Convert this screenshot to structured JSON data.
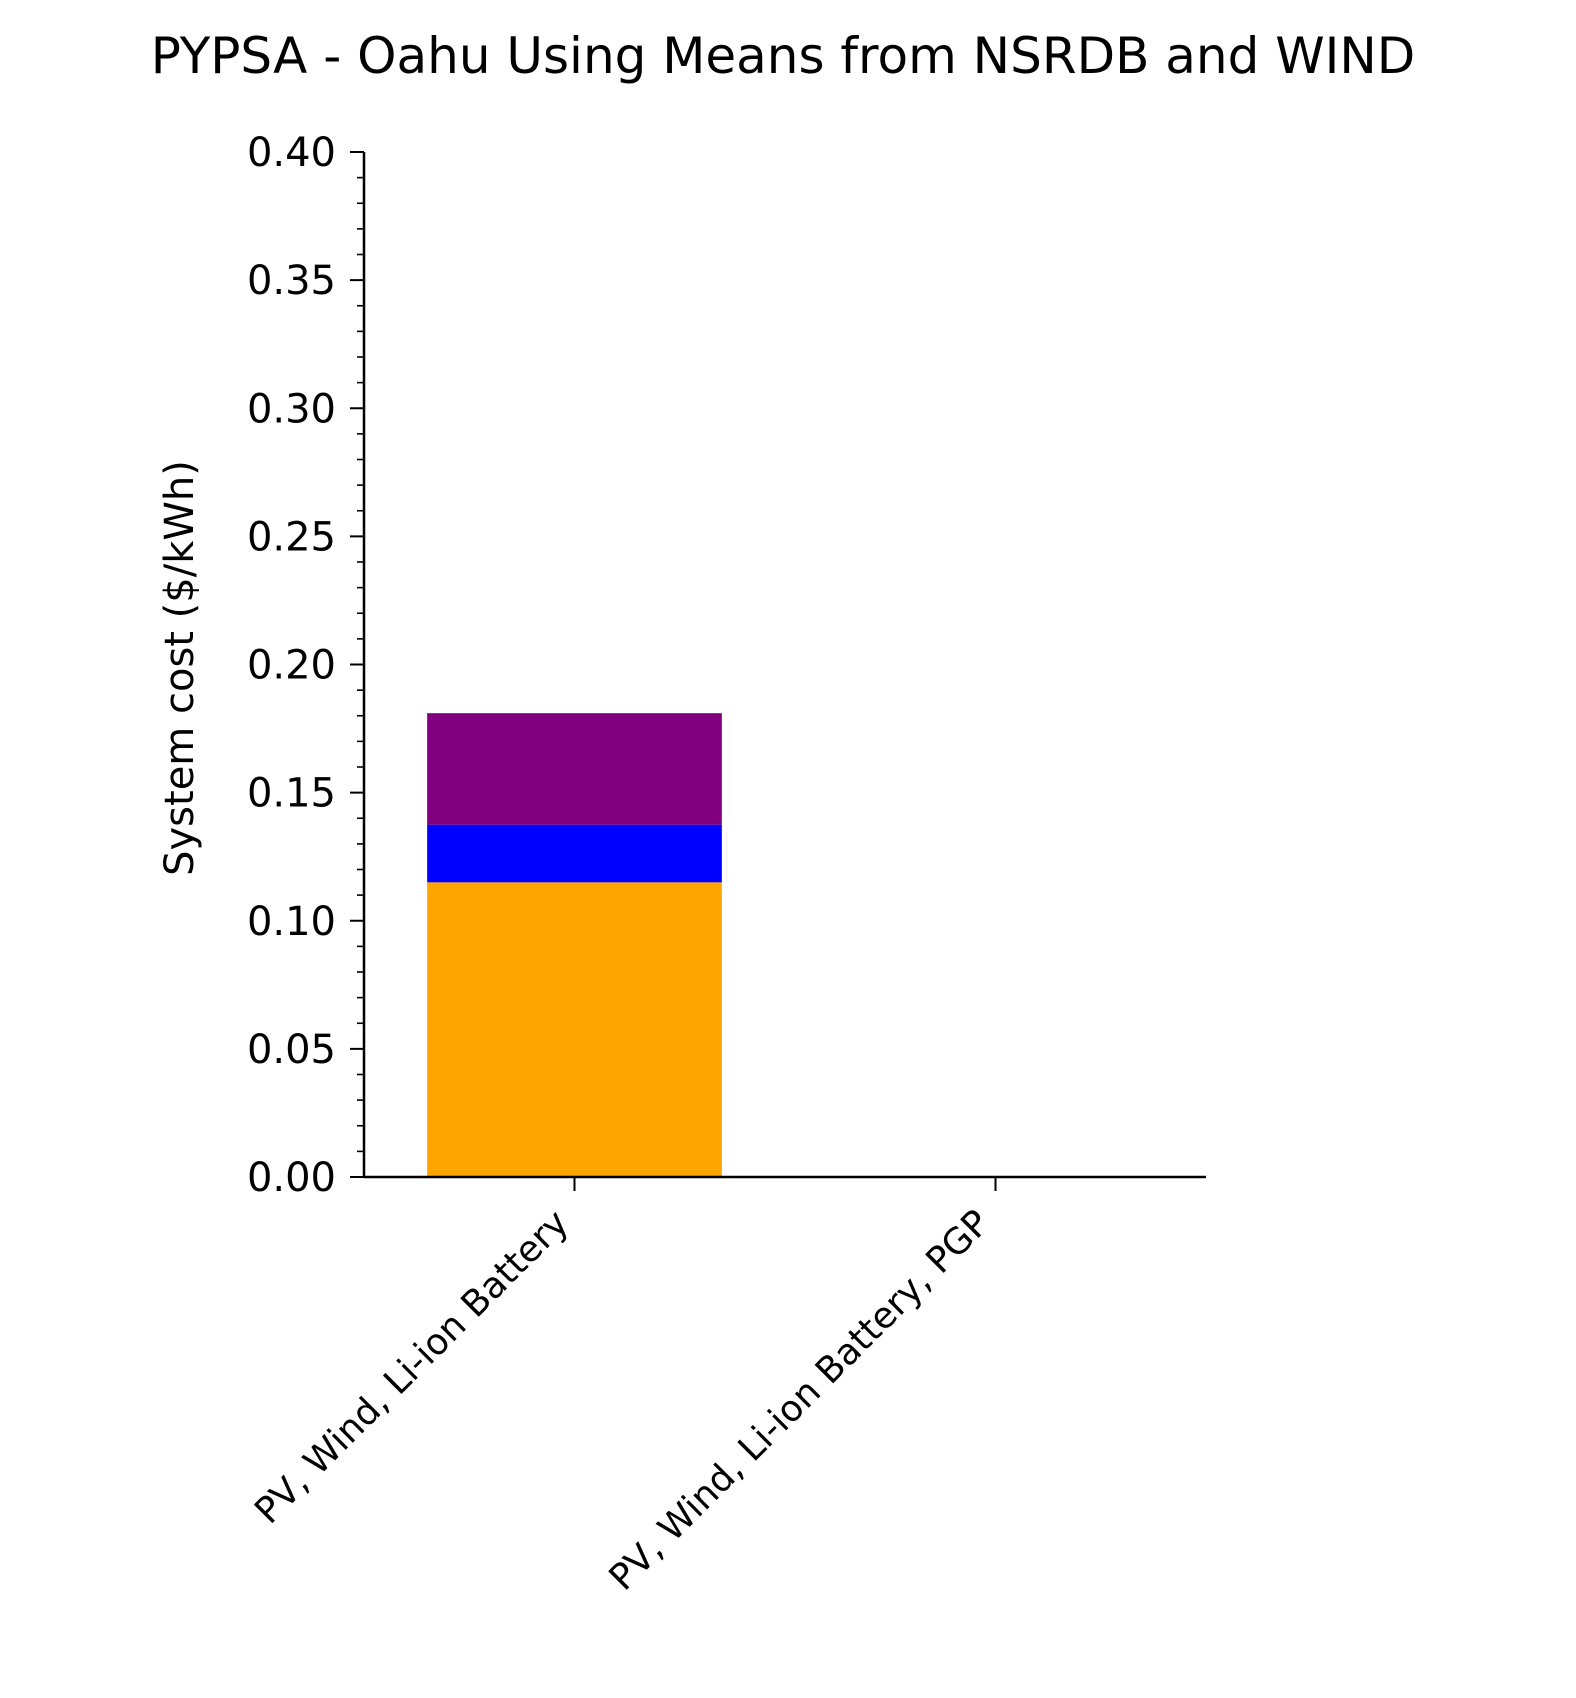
{
  "chart_data": {
    "type": "bar",
    "stacked": true,
    "title": "PYPSA - Oahu Using Means from NSRDB and WIND",
    "xlabel": "",
    "ylabel": "System cost ($/kWh)",
    "ylim": [
      0,
      0.4
    ],
    "yticks": [
      0.0,
      0.05,
      0.1,
      0.15,
      0.2,
      0.25,
      0.3,
      0.35,
      0.4
    ],
    "ytick_labels": [
      "0.00",
      "0.05",
      "0.10",
      "0.15",
      "0.20",
      "0.25",
      "0.30",
      "0.35",
      "0.40"
    ],
    "categories": [
      "PV, Wind, Li-ion Battery",
      "PV, Wind, Li-ion Battery, PGP"
    ],
    "series": [
      {
        "name": "PV",
        "color": "#FFA500",
        "values": [
          0.115,
          0
        ]
      },
      {
        "name": "Wind",
        "color": "#0000FF",
        "values": [
          0.0225,
          0
        ]
      },
      {
        "name": "Li-ion Battery",
        "color": "#800080",
        "values": [
          0.0435,
          0
        ]
      }
    ],
    "grid": false,
    "legend": "none"
  }
}
